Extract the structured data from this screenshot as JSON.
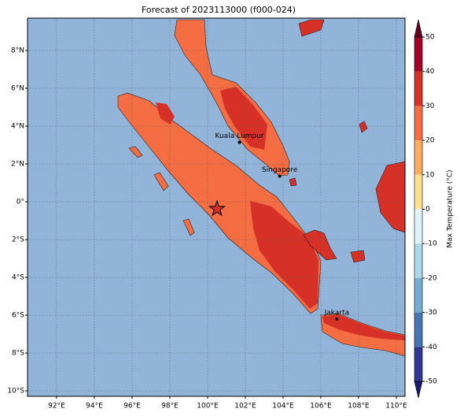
{
  "title": "Forecast of 2023113000 (f000-024)",
  "lon_lim": [
    90.46,
    110.46
  ],
  "lat_lim": [
    -10.29,
    9.71
  ],
  "lon_ticks": [
    {
      "value": 92,
      "label": "92°E"
    },
    {
      "value": 94,
      "label": "94°E"
    },
    {
      "value": 96,
      "label": "96°E"
    },
    {
      "value": 98,
      "label": "98°E"
    },
    {
      "value": 100,
      "label": "100°E"
    },
    {
      "value": 102,
      "label": "102°E"
    },
    {
      "value": 104,
      "label": "104°E"
    },
    {
      "value": 106,
      "label": "106°E"
    },
    {
      "value": 108,
      "label": "108°E"
    },
    {
      "value": 110,
      "label": "110°E"
    }
  ],
  "lat_ticks": [
    {
      "value": 8,
      "label": "8°N"
    },
    {
      "value": 6,
      "label": "6°N"
    },
    {
      "value": 4,
      "label": "4°N"
    },
    {
      "value": 2,
      "label": "2°N"
    },
    {
      "value": 0,
      "label": "0°"
    },
    {
      "value": -2,
      "label": "2°S"
    },
    {
      "value": -4,
      "label": "4°S"
    },
    {
      "value": -6,
      "label": "6°S"
    },
    {
      "value": -8,
      "label": "8°S"
    },
    {
      "value": -10,
      "label": "10°S"
    }
  ],
  "cities": [
    {
      "name": "Kuala Lumpur",
      "lon": 101.69,
      "lat": 3.14
    },
    {
      "name": "Singapore",
      "lon": 103.82,
      "lat": 1.35
    },
    {
      "name": "Jakarta",
      "lon": 106.85,
      "lat": -6.2
    }
  ],
  "marker": {
    "lon": 100.5,
    "lat": -0.38,
    "color": "#d73027"
  },
  "colorbar": {
    "label": "Max Temperature (°C)",
    "lim": [
      -50,
      50
    ],
    "ticks": [
      -50,
      -40,
      -30,
      -20,
      -10,
      0,
      10,
      20,
      30,
      40,
      50
    ],
    "colors": [
      "#313695",
      "#4575b4",
      "#74add1",
      "#abd9e9",
      "#e0f3f8",
      "#fee090",
      "#fdae61",
      "#f46d43",
      "#d73027",
      "#a50026"
    ],
    "under_color": "#1a1a70",
    "over_color": "#67001f"
  }
}
